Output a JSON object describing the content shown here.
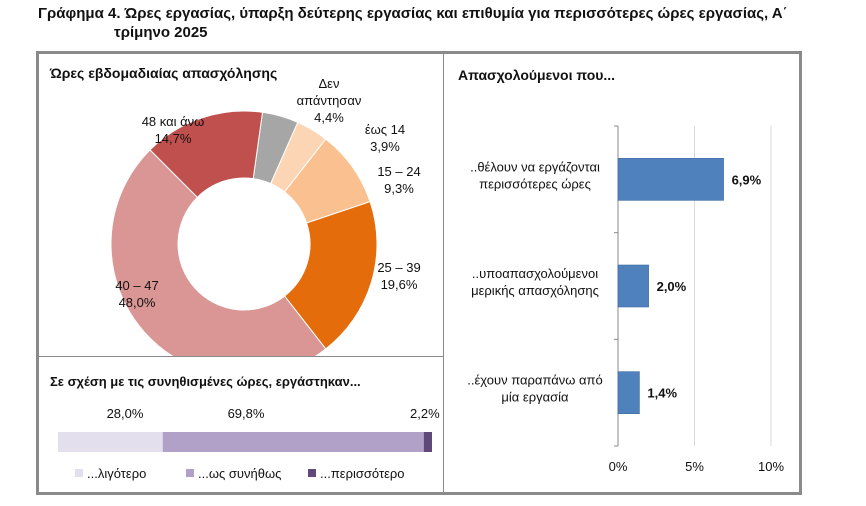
{
  "figure": {
    "title_line1": "Γράφημα 4. Ώρες εργασίας, ύπαρξη δεύτερης εργασίας και επιθυμία για περισσότερες ώρες εργασίας, Α΄",
    "title_line2": "τρίμηνο 2025"
  },
  "chart_data": [
    {
      "type": "pie",
      "title": "Ώρες εβδομαδιαίας απασχόλησης",
      "donut": true,
      "slices": [
        {
          "label_lines": [
            "Δεν",
            "απάντησαν"
          ],
          "value": 4.4,
          "value_label": "4,4%",
          "color": "#a6a6a6"
        },
        {
          "label_lines": [
            "έως 14"
          ],
          "value": 3.9,
          "value_label": "3,9%",
          "color": "#fcd5b4"
        },
        {
          "label_lines": [
            "15 – 24"
          ],
          "value": 9.3,
          "value_label": "9,3%",
          "color": "#fac08f"
        },
        {
          "label_lines": [
            "25 – 39"
          ],
          "value": 19.6,
          "value_label": "19,6%",
          "color": "#e46c0a"
        },
        {
          "label_lines": [
            "40 – 47"
          ],
          "value": 48.0,
          "value_label": "48,0%",
          "color": "#d99694"
        },
        {
          "label_lines": [
            "48 και άνω"
          ],
          "value": 14.7,
          "value_label": "14,7%",
          "color": "#c0504d"
        }
      ]
    },
    {
      "type": "bar",
      "stacked": true,
      "orientation": "horizontal",
      "title": "Σε σχέση με τις συνηθισμένες ώρες, εργάστηκαν...",
      "series": [
        {
          "name": "...λιγότερο",
          "value": 28.0,
          "value_label": "28,0%",
          "color": "#e4dfec"
        },
        {
          "name": "...ως συνήθως",
          "value": 69.8,
          "value_label": "69,8%",
          "color": "#b1a0c7"
        },
        {
          "name": "...περισσότερο",
          "value": 2.2,
          "value_label": "2,2%",
          "color": "#60497a"
        }
      ],
      "legend": "bottom"
    },
    {
      "type": "bar",
      "orientation": "horizontal",
      "title": "Απασχολούμενοι που...",
      "categories": [
        [
          "..θέλουν να εργάζονται",
          "περισσότερες ώρες"
        ],
        [
          "..υποαπασχολούμενοι",
          "μερικής απασχόλησης"
        ],
        [
          "..έχουν παραπάνω από",
          "μία εργασία"
        ]
      ],
      "values": [
        6.9,
        2.0,
        1.4
      ],
      "value_labels": [
        "6,9%",
        "2,0%",
        "1,4%"
      ],
      "xlim": [
        0,
        10
      ],
      "xticks": [
        0,
        5,
        10
      ],
      "xtick_labels": [
        "0%",
        "5%",
        "10%"
      ],
      "grid": true,
      "color": "#4f81bd"
    }
  ]
}
